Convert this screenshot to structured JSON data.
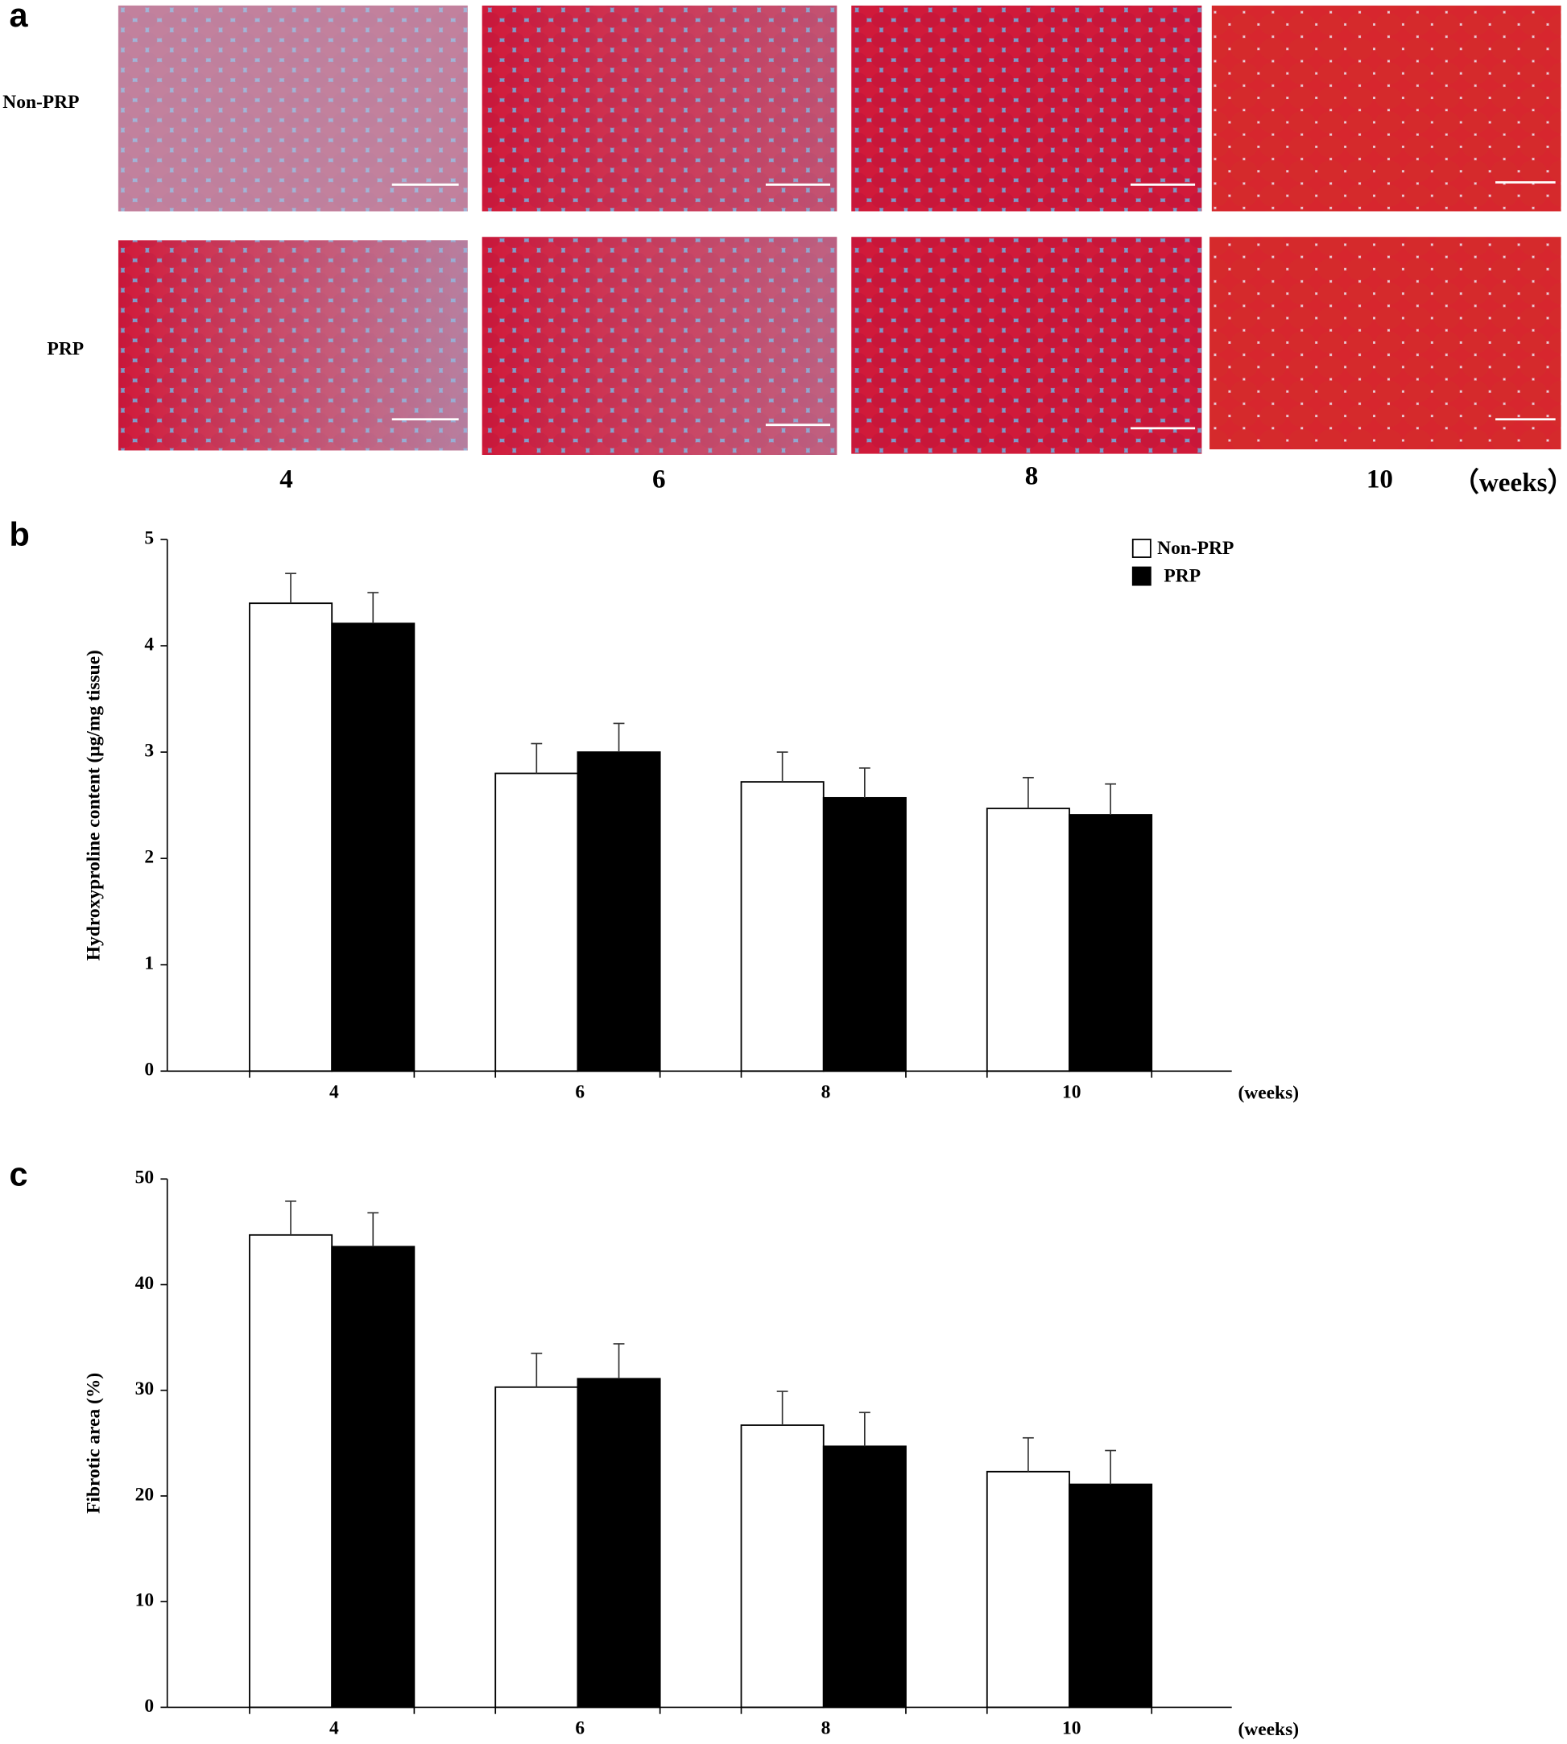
{
  "panel_a": {
    "label": "a",
    "rows": [
      "Non-PRP",
      "PRP"
    ],
    "columns": [
      "4",
      "6",
      "8",
      "10"
    ],
    "unit": "（weeks）"
  },
  "chart_data": [
    {
      "type": "bar",
      "panel_label": "b",
      "y_label": "Hydroxyproline  content (μg/mg tissue)",
      "x_label": "(weeks)",
      "categories": [
        "4",
        "6",
        "8",
        "10"
      ],
      "series": [
        {
          "name": "Non-PRP",
          "color": "#ffffff",
          "values": [
            4.4,
            2.8,
            2.72,
            2.47
          ],
          "errors": [
            0.28,
            0.28,
            0.28,
            0.29
          ]
        },
        {
          "name": "PRP",
          "color": "#000000",
          "values": [
            4.21,
            3.0,
            2.57,
            2.41
          ],
          "errors": [
            0.29,
            0.27,
            0.28,
            0.29
          ]
        }
      ],
      "ylim": [
        0,
        5
      ],
      "yticks": [
        0,
        1,
        2,
        3,
        4,
        5
      ],
      "legend": "upper right"
    },
    {
      "type": "bar",
      "panel_label": "c",
      "y_label": "Fibrotic  area (%)",
      "x_label": "(weeks)",
      "categories": [
        "4",
        "6",
        "8",
        "10"
      ],
      "series": [
        {
          "name": "Non-PRP",
          "color": "#ffffff",
          "values": [
            44.7,
            30.3,
            26.7,
            22.3
          ],
          "errors": [
            3.2,
            3.2,
            3.2,
            3.2
          ]
        },
        {
          "name": "PRP",
          "color": "#000000",
          "values": [
            43.6,
            31.1,
            24.7,
            21.1
          ],
          "errors": [
            3.2,
            3.3,
            3.2,
            3.2
          ]
        }
      ],
      "ylim": [
        0,
        50
      ],
      "yticks": [
        0,
        10,
        20,
        30,
        40,
        50
      ],
      "legend": false
    }
  ]
}
